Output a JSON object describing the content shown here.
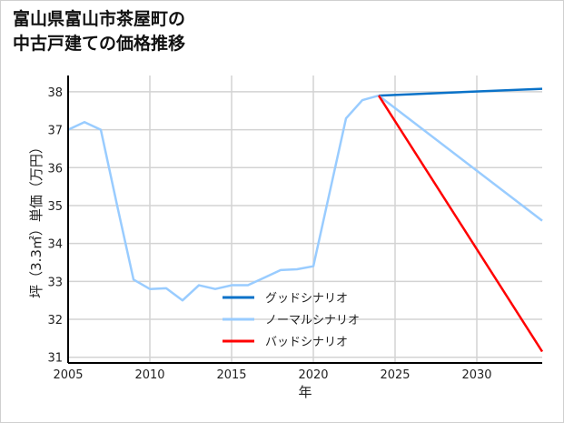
{
  "chart_data": {
    "type": "line",
    "title": "富山県富山市茶屋町の\n中古戸建ての価格推移",
    "xlabel": "年",
    "ylabel": "坪（3.3㎡）単価（万円）",
    "xlim": [
      2005,
      2034
    ],
    "ylim": [
      30.85,
      38.43
    ],
    "xticks": [
      2005,
      2010,
      2015,
      2020,
      2025,
      2030
    ],
    "yticks": [
      31,
      32,
      33,
      34,
      35,
      36,
      37,
      38
    ],
    "grid": true,
    "legend_position": "bottom-center",
    "series": [
      {
        "name": "グッドシナリオ",
        "color": "#0a72c8",
        "legend": true,
        "x": [
          2024,
          2034
        ],
        "y": [
          37.9,
          38.08
        ]
      },
      {
        "name": "ノーマルシナリオ",
        "color": "#99ccff",
        "legend": true,
        "x": [
          2005,
          2006,
          2007,
          2008,
          2009,
          2010,
          2011,
          2012,
          2013,
          2014,
          2015,
          2016,
          2017,
          2018,
          2019,
          2020,
          2021,
          2022,
          2023,
          2024
        ],
        "y": [
          37.0,
          37.2,
          37.0,
          35.0,
          33.05,
          32.8,
          32.82,
          32.5,
          32.9,
          32.8,
          32.9,
          32.9,
          33.1,
          33.3,
          33.32,
          33.4,
          35.35,
          37.3,
          37.78,
          37.9
        ]
      },
      {
        "name": "ノーマルシナリオ予測",
        "color": "#99ccff",
        "legend": false,
        "x": [
          2024,
          2034
        ],
        "y": [
          37.9,
          34.6
        ]
      },
      {
        "name": "バッドシナリオ",
        "color": "#ff0000",
        "legend": true,
        "x": [
          2024,
          2034
        ],
        "y": [
          37.9,
          31.15
        ]
      }
    ]
  }
}
